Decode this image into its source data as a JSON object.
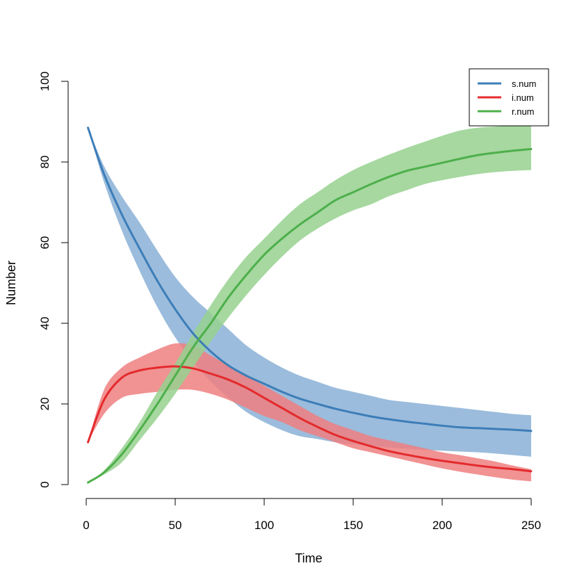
{
  "chart_data": {
    "type": "area",
    "title": "",
    "xlabel": "Time",
    "ylabel": "Number",
    "xlim": [
      0,
      250
    ],
    "ylim": [
      0,
      100
    ],
    "xticks": [
      0,
      50,
      100,
      150,
      200,
      250
    ],
    "yticks": [
      0,
      20,
      40,
      60,
      80,
      100
    ],
    "grid": false,
    "legend_position": "top-right",
    "x": [
      1,
      10,
      20,
      30,
      40,
      50,
      60,
      70,
      80,
      90,
      100,
      110,
      120,
      130,
      140,
      150,
      160,
      170,
      180,
      190,
      200,
      210,
      220,
      230,
      240,
      250
    ],
    "series": [
      {
        "name": "s.num",
        "color": "#3C7DB8",
        "band_color": "#8AB0D6",
        "mean": [
          88.5,
          77,
          67,
          58.5,
          50.5,
          43.5,
          37.5,
          33,
          29.5,
          27,
          25,
          23,
          21.3,
          20,
          18.8,
          17.8,
          16.9,
          16.2,
          15.6,
          15.1,
          14.6,
          14.2,
          14,
          13.8,
          13.6,
          13.3
        ],
        "upper": [
          88.5,
          79,
          71.5,
          65,
          58,
          51.5,
          46.5,
          42.5,
          38.5,
          34.5,
          31.5,
          29,
          27,
          25.5,
          24,
          23,
          22,
          21,
          20.5,
          20,
          19.5,
          19,
          18.5,
          18,
          17.5,
          17.2
        ],
        "lower": [
          88.5,
          75,
          63,
          53,
          44,
          36.5,
          30.5,
          25.5,
          21.5,
          18,
          15.5,
          13.5,
          12,
          11.3,
          10.5,
          10,
          9.6,
          9.2,
          8.9,
          8.6,
          8.4,
          8.2,
          8,
          7.7,
          7.3,
          6.9
        ]
      },
      {
        "name": "i.num",
        "color": "#E42A2C",
        "band_color": "#EE7F80",
        "mean": [
          10.5,
          21,
          26.5,
          28.3,
          29,
          29.3,
          28.8,
          27.5,
          26,
          24,
          21.5,
          19,
          16.5,
          14.3,
          12.3,
          10.8,
          9.5,
          8.3,
          7.4,
          6.6,
          5.9,
          5.3,
          4.7,
          4.2,
          3.8,
          3.3
        ],
        "upper": [
          10.5,
          23.5,
          29,
          31.5,
          33.5,
          35,
          34.5,
          32,
          29.5,
          27,
          24.5,
          22,
          19.5,
          17,
          15,
          13.5,
          12,
          11,
          10,
          9,
          8,
          7.3,
          6.5,
          5.7,
          4.7,
          3.8
        ],
        "lower": [
          10.5,
          17.5,
          21.5,
          22.5,
          23,
          23.5,
          23.5,
          22.5,
          21,
          19,
          17,
          15.5,
          13.5,
          12,
          10.5,
          9,
          8,
          7,
          6,
          5,
          4,
          3.2,
          2.5,
          1.8,
          1.2,
          0.8
        ]
      },
      {
        "name": "r.num",
        "color": "#4DAF4A",
        "band_color": "#96D18F",
        "mean": [
          0.5,
          3,
          7.5,
          13.5,
          20,
          27,
          34,
          40,
          46.5,
          52,
          57,
          61,
          64.5,
          67.5,
          70.5,
          72.5,
          74.5,
          76.3,
          77.8,
          78.8,
          79.8,
          80.8,
          81.7,
          82.3,
          82.8,
          83.2
        ],
        "upper": [
          0.5,
          3.5,
          9,
          15.5,
          23,
          30,
          37.5,
          44.5,
          51,
          56.5,
          61,
          65.5,
          69.5,
          72.5,
          75.5,
          78,
          80,
          81.8,
          83.5,
          85,
          86.5,
          87.8,
          88.5,
          88.8,
          89,
          89.2
        ],
        "lower": [
          0.5,
          2.5,
          5.5,
          11,
          16.5,
          22.5,
          29,
          35.5,
          41.5,
          47,
          52,
          56.5,
          60.5,
          63.5,
          66,
          68,
          69.5,
          71.5,
          73,
          74.5,
          75.5,
          76.3,
          77,
          77.5,
          77.8,
          78
        ]
      }
    ]
  }
}
